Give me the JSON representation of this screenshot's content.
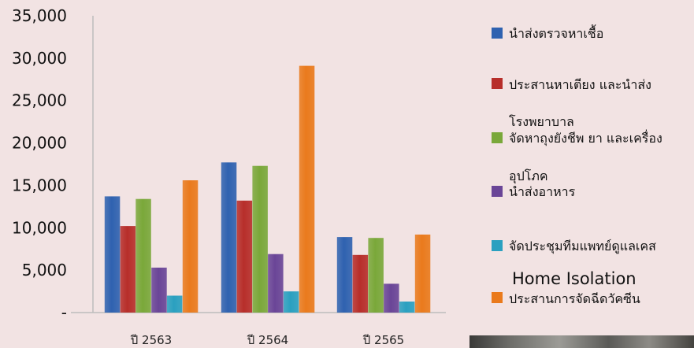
{
  "chart_data": {
    "type": "bar",
    "categories": [
      "ปี 2563",
      "ปี 2564",
      "ปี 2565"
    ],
    "series": [
      {
        "name": "นำส่งตรวจหาเชื้อ",
        "values": [
          13700,
          17700,
          8900
        ]
      },
      {
        "name": "ประสานหาเตียง และนำส่ง โรงพยาบาล",
        "values": [
          10200,
          13200,
          6800
        ]
      },
      {
        "name": "จัดหาถุงยังชีพ ยา  และเครื่อง อุปโภค",
        "values": [
          13400,
          17300,
          8800
        ]
      },
      {
        "name": "นำส่งอาหาร",
        "values": [
          5300,
          6900,
          3400
        ]
      },
      {
        "name": "จัดประชุมทีมแพทย์ดูแลเคส Home Isolation",
        "values": [
          2000,
          2500,
          1300
        ]
      },
      {
        "name": "ประสานการจัดฉีดวัคซีน",
        "values": [
          15600,
          29100,
          9200
        ]
      }
    ],
    "ylim": [
      0,
      35000
    ],
    "yticks": [
      0,
      5000,
      10000,
      15000,
      20000,
      25000,
      30000,
      35000
    ],
    "ytick_labels": [
      "-",
      "5,000",
      "10,000",
      "15,000",
      "20,000",
      "25,000",
      "30,000",
      "35,000"
    ],
    "grid": false,
    "legend_position": "right",
    "colors": [
      "#2f62b0",
      "#b72e2a",
      "#7aa83a",
      "#6a4597",
      "#2aa0c0",
      "#ea7a1c"
    ]
  },
  "legend_lines": [
    [
      "นำส่งตรวจหาเชื้อ"
    ],
    [
      "ประสานหาเตียง และนำส่ง",
      "โรงพยาบาล"
    ],
    [
      "จัดหาถุงยังชีพ ยา  และเครื่อง",
      "อุปโภค"
    ],
    [
      "นำส่งอาหาร"
    ],
    [
      "จัดประชุมทีมแพทย์ดูแลเคส",
      "Home Isolation"
    ],
    [
      "ประสานการจัดฉีดวัคซีน"
    ]
  ]
}
